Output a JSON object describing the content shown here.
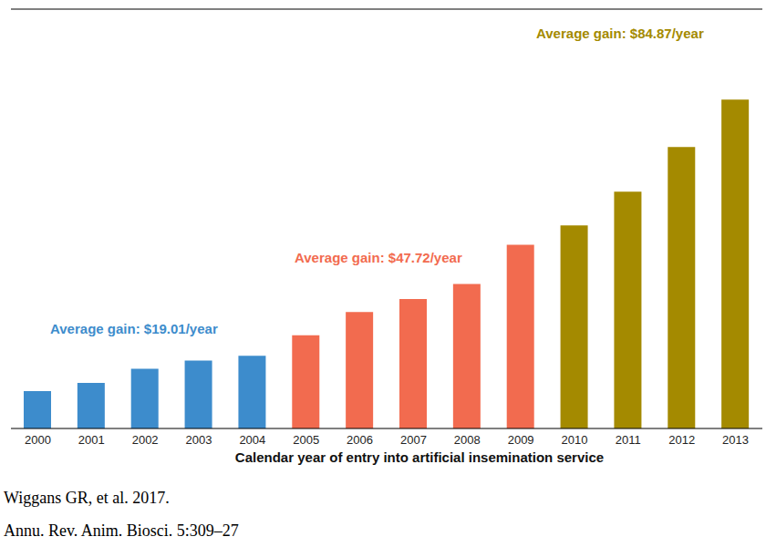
{
  "chart_data": {
    "type": "bar",
    "x_label": "Calendar year of entry into artificial insemination service",
    "categories": [
      "2000",
      "2001",
      "2002",
      "2003",
      "2004",
      "2005",
      "2006",
      "2007",
      "2008",
      "2009",
      "2010",
      "2011",
      "2012",
      "2013"
    ],
    "values": [
      20,
      24.5,
      32,
      36.5,
      39,
      50,
      62.5,
      69.5,
      77.5,
      98.5,
      109,
      127,
      151,
      176.5
    ],
    "colors": [
      "#3d8ccc",
      "#3d8ccc",
      "#3d8ccc",
      "#3d8ccc",
      "#3d8ccc",
      "#f26b4f",
      "#f26b4f",
      "#f26b4f",
      "#f26b4f",
      "#f26b4f",
      "#a48a00",
      "#a48a00",
      "#a48a00",
      "#a48a00"
    ],
    "ylim": [
      0,
      225
    ],
    "tick_labels": "x",
    "grid": false,
    "annotations": [
      {
        "text": "Average gain: $19.01/year",
        "color": "#3d8ccc"
      },
      {
        "text": "Average gain: $47.72/year",
        "color": "#f26b4f"
      },
      {
        "text": "Average gain: $84.87/year",
        "color": "#a48a00"
      }
    ],
    "source": [
      "Wiggans GR, et al. 2017.",
      "Annu. Rev. Anim. Biosci. 5:309–27"
    ]
  }
}
